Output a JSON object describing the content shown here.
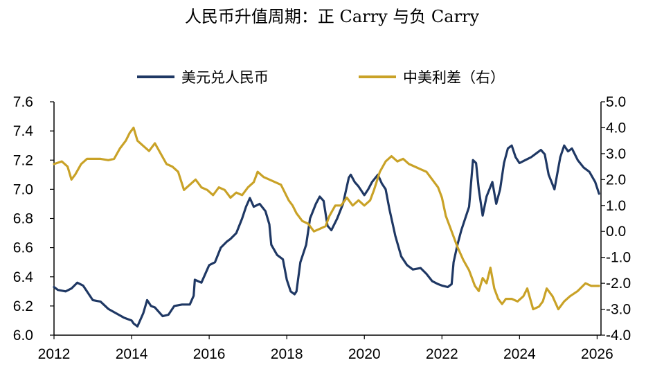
{
  "chart_data": {
    "type": "line",
    "title": "人民币升值周期：正 Carry 与负 Carry",
    "legend": {
      "placement": "top"
    },
    "x_ticks": [
      "2012",
      "2014",
      "2016",
      "2018",
      "2020",
      "2022",
      "2024",
      "2026"
    ],
    "xlim": [
      2012,
      2026.1
    ],
    "y_left": {
      "ticks": [
        "6.0",
        "6.2",
        "6.4",
        "6.6",
        "6.8",
        "7.0",
        "7.2",
        "7.4",
        "7.6"
      ],
      "ylim": [
        6.0,
        7.6
      ]
    },
    "y_right": {
      "ticks": [
        "-4.0",
        "-3.0",
        "-2.0",
        "-1.0",
        "0.0",
        "1.0",
        "2.0",
        "3.0",
        "4.0",
        "5.0"
      ],
      "ylim": [
        -4.0,
        5.0
      ]
    },
    "grid": false,
    "series": [
      {
        "name": "美元兑人民币",
        "axis": "left",
        "color": "#1f3864",
        "x": [
          2012.0,
          2012.1,
          2012.3,
          2012.45,
          2012.6,
          2012.75,
          2012.9,
          2013.0,
          2013.2,
          2013.4,
          2013.6,
          2013.8,
          2014.0,
          2014.05,
          2014.15,
          2014.3,
          2014.4,
          2014.5,
          2014.6,
          2014.7,
          2014.8,
          2014.95,
          2015.1,
          2015.3,
          2015.5,
          2015.6,
          2015.63,
          2015.8,
          2015.95,
          2016.0,
          2016.15,
          2016.3,
          2016.45,
          2016.55,
          2016.7,
          2016.85,
          2016.95,
          2017.05,
          2017.15,
          2017.3,
          2017.45,
          2017.55,
          2017.6,
          2017.75,
          2017.9,
          2018.0,
          2018.1,
          2018.2,
          2018.25,
          2018.35,
          2018.5,
          2018.6,
          2018.75,
          2018.85,
          2018.95,
          2019.05,
          2019.15,
          2019.3,
          2019.45,
          2019.6,
          2019.65,
          2019.75,
          2019.85,
          2019.95,
          2020.0,
          2020.1,
          2020.2,
          2020.35,
          2020.45,
          2020.55,
          2020.65,
          2020.8,
          2020.95,
          2021.1,
          2021.25,
          2021.45,
          2021.6,
          2021.75,
          2021.9,
          2022.0,
          2022.15,
          2022.25,
          2022.3,
          2022.4,
          2022.5,
          2022.6,
          2022.7,
          2022.8,
          2022.88,
          2022.95,
          2023.05,
          2023.15,
          2023.3,
          2023.4,
          2023.5,
          2023.6,
          2023.7,
          2023.8,
          2023.9,
          2024.0,
          2024.15,
          2024.3,
          2024.45,
          2024.55,
          2024.65,
          2024.75,
          2024.9,
          2025.05,
          2025.15,
          2025.25,
          2025.35,
          2025.5,
          2025.65,
          2025.8,
          2025.95,
          2026.05
        ],
        "y": [
          6.33,
          6.31,
          6.3,
          6.32,
          6.36,
          6.34,
          6.28,
          6.24,
          6.23,
          6.18,
          6.15,
          6.12,
          6.1,
          6.08,
          6.06,
          6.15,
          6.24,
          6.2,
          6.19,
          6.16,
          6.13,
          6.14,
          6.2,
          6.21,
          6.21,
          6.27,
          6.38,
          6.36,
          6.45,
          6.48,
          6.5,
          6.6,
          6.64,
          6.66,
          6.7,
          6.8,
          6.88,
          6.94,
          6.88,
          6.9,
          6.85,
          6.76,
          6.62,
          6.55,
          6.52,
          6.38,
          6.3,
          6.28,
          6.3,
          6.5,
          6.62,
          6.8,
          6.9,
          6.95,
          6.92,
          6.75,
          6.72,
          6.8,
          6.9,
          7.08,
          7.1,
          7.05,
          7.02,
          6.98,
          6.96,
          7.0,
          7.05,
          7.1,
          7.04,
          7.0,
          6.86,
          6.68,
          6.54,
          6.48,
          6.45,
          6.46,
          6.42,
          6.37,
          6.35,
          6.34,
          6.33,
          6.35,
          6.5,
          6.62,
          6.72,
          6.8,
          6.88,
          7.2,
          7.18,
          7.0,
          6.82,
          6.95,
          7.05,
          6.9,
          7.0,
          7.18,
          7.28,
          7.3,
          7.22,
          7.18,
          7.2,
          7.22,
          7.25,
          7.27,
          7.24,
          7.1,
          7.0,
          7.22,
          7.3,
          7.26,
          7.28,
          7.2,
          7.15,
          7.12,
          7.05,
          6.97
        ]
      },
      {
        "name": "中美利差（右）",
        "axis": "right",
        "color": "#c9a227",
        "x": [
          2012.0,
          2012.2,
          2012.35,
          2012.45,
          2012.55,
          2012.7,
          2012.85,
          2013.0,
          2013.2,
          2013.4,
          2013.55,
          2013.7,
          2013.85,
          2013.95,
          2014.05,
          2014.15,
          2014.3,
          2014.45,
          2014.6,
          2014.75,
          2014.9,
          2015.05,
          2015.2,
          2015.35,
          2015.5,
          2015.65,
          2015.8,
          2015.95,
          2016.1,
          2016.25,
          2016.4,
          2016.55,
          2016.7,
          2016.85,
          2017.0,
          2017.15,
          2017.25,
          2017.4,
          2017.55,
          2017.7,
          2017.85,
          2017.95,
          2018.05,
          2018.15,
          2018.25,
          2018.4,
          2018.55,
          2018.7,
          2018.85,
          2019.0,
          2019.1,
          2019.25,
          2019.4,
          2019.55,
          2019.7,
          2019.85,
          2020.0,
          2020.15,
          2020.25,
          2020.4,
          2020.55,
          2020.7,
          2020.85,
          2021.0,
          2021.15,
          2021.3,
          2021.45,
          2021.6,
          2021.75,
          2021.9,
          2022.0,
          2022.1,
          2022.2,
          2022.3,
          2022.4,
          2022.55,
          2022.7,
          2022.85,
          2022.95,
          2023.05,
          2023.15,
          2023.25,
          2023.35,
          2023.45,
          2023.55,
          2023.65,
          2023.8,
          2023.95,
          2024.1,
          2024.2,
          2024.35,
          2024.5,
          2024.6,
          2024.7,
          2024.85,
          2025.0,
          2025.15,
          2025.3,
          2025.5,
          2025.7,
          2025.85,
          2026.05
        ],
        "y": [
          2.6,
          2.7,
          2.5,
          2.0,
          2.2,
          2.6,
          2.8,
          2.8,
          2.8,
          2.75,
          2.8,
          3.2,
          3.5,
          3.8,
          4.0,
          3.5,
          3.3,
          3.1,
          3.4,
          3.0,
          2.6,
          2.5,
          2.3,
          1.6,
          1.8,
          2.0,
          1.7,
          1.6,
          1.4,
          1.7,
          1.6,
          1.3,
          1.5,
          1.4,
          1.7,
          1.9,
          2.3,
          2.1,
          2.0,
          1.9,
          1.8,
          1.5,
          1.2,
          1.0,
          0.7,
          0.4,
          0.3,
          0.0,
          0.1,
          0.2,
          0.6,
          1.0,
          1.0,
          1.3,
          1.0,
          1.2,
          1.0,
          1.2,
          1.6,
          2.3,
          2.7,
          2.9,
          2.7,
          2.8,
          2.6,
          2.5,
          2.4,
          2.3,
          2.0,
          1.7,
          1.3,
          0.6,
          0.2,
          -0.2,
          -0.6,
          -1.1,
          -1.5,
          -2.1,
          -2.3,
          -1.8,
          -2.0,
          -1.4,
          -2.2,
          -2.6,
          -2.8,
          -2.6,
          -2.6,
          -2.7,
          -2.5,
          -2.2,
          -3.0,
          -2.9,
          -2.7,
          -2.2,
          -2.5,
          -3.0,
          -2.7,
          -2.5,
          -2.3,
          -2.0,
          -2.1,
          -2.1
        ]
      }
    ]
  }
}
